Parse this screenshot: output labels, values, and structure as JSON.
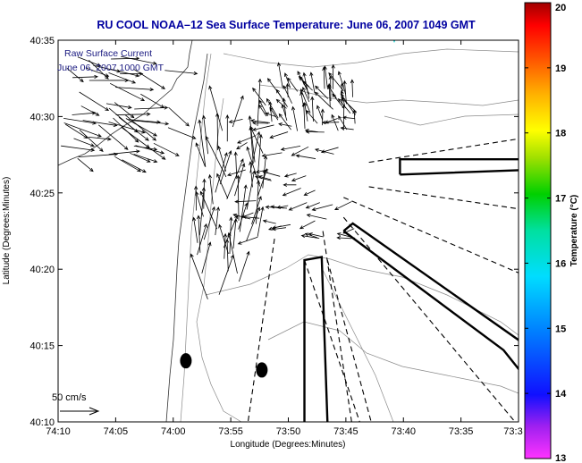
{
  "chart_data": {
    "type": "map-vector-field",
    "title": "RU COOL   NOAA–12  Sea Surface Temperature:  June 06, 2007 1049 GMT",
    "annotation_lines": [
      "Raw Surface Current",
      "June 06, 2007 1000 GMT"
    ],
    "xlabel": "Longitude (Degrees:Minutes)",
    "ylabel": "Latitude (Degrees:Minutes)",
    "x_ticks": [
      "74:10",
      "74:05",
      "74:00",
      "73:55",
      "73:50",
      "73:45",
      "73:40",
      "73:35",
      "73:3"
    ],
    "y_ticks": [
      "40:10",
      "40:15",
      "40:20",
      "40:25",
      "40:30",
      "40:35"
    ],
    "xlim_minutes_west": [
      70,
      30
    ],
    "ylim_minutes_north": [
      10,
      35
    ],
    "scale_label": "50 cm/s",
    "colorbar": {
      "label": "Temperature (°C)",
      "ticks": [
        "13",
        "14",
        "15",
        "16",
        "17",
        "18",
        "19",
        "20"
      ],
      "range": [
        13,
        20
      ]
    },
    "buoys": [
      {
        "lon_min_w": 58.9,
        "lat_min_n": 14.0
      },
      {
        "lon_min_w": 52.3,
        "lat_min_n": 13.4
      }
    ],
    "shipping_lanes": [
      {
        "lon_min_w": [
          40.3,
          40.3,
          29.5,
          29.5,
          40.3
        ],
        "lat_min_n": [
          26.2,
          27.2,
          27.2,
          26.5,
          26.2
        ]
      },
      {
        "lon_min_w": [
          45.2,
          31.3,
          29.5,
          29.5,
          44.4,
          45.2
        ],
        "lat_min_n": [
          22.5,
          14.7,
          13.0,
          15.1,
          23.0,
          22.5
        ]
      },
      {
        "lon_min_w": [
          48.6,
          48.6,
          47.1,
          46.6,
          46.6
        ],
        "lat_min_n": [
          10.0,
          20.6,
          20.8,
          10.0,
          10.0
        ]
      }
    ],
    "dashed_lanes": [
      {
        "lon_min_w": [
          43.0,
          29.5
        ],
        "lat_min_n": [
          27.0,
          28.6
        ]
      },
      {
        "lon_min_w": [
          43.0,
          29.5
        ],
        "lat_min_n": [
          25.4,
          23.9
        ]
      },
      {
        "lon_min_w": [
          45.2,
          29.5
        ],
        "lat_min_n": [
          24.7,
          19.6
        ]
      },
      {
        "lon_min_w": [
          45.2,
          30.3
        ],
        "lat_min_n": [
          23.4,
          10.0
        ]
      },
      {
        "lon_min_w": [
          48.6,
          43.8
        ],
        "lat_min_n": [
          20.6,
          10.0
        ]
      },
      {
        "lon_min_w": [
          46.6,
          42.8
        ],
        "lat_min_n": [
          20.6,
          10.0
        ]
      },
      {
        "lon_min_w": [
          51.2,
          53.5
        ],
        "lat_min_n": [
          22.0,
          10.0
        ]
      },
      {
        "lon_min_w": [
          47.0,
          44.5
        ],
        "lat_min_n": [
          22.5,
          10.0
        ]
      }
    ],
    "vector_field_regions": [
      {
        "lon_min_w": [
          70,
          60
        ],
        "lat_min_n": [
          27,
          34
        ],
        "mean_u": 0.6,
        "mean_v": -0.2,
        "speed_cm_s": 45
      },
      {
        "lon_min_w": [
          58,
          52
        ],
        "lat_min_n": [
          18,
          30
        ],
        "mean_u": -0.05,
        "mean_v": 1.0,
        "speed_cm_s": 55
      },
      {
        "lon_min_w": [
          54,
          44
        ],
        "lat_min_n": [
          22,
          30
        ],
        "mean_u": -0.9,
        "mean_v": -0.1,
        "speed_cm_s": 25
      },
      {
        "lon_min_w": [
          52,
          44
        ],
        "lat_min_n": [
          29,
          32
        ],
        "mean_u": -0.3,
        "mean_v": 0.7,
        "speed_cm_s": 30
      }
    ]
  }
}
